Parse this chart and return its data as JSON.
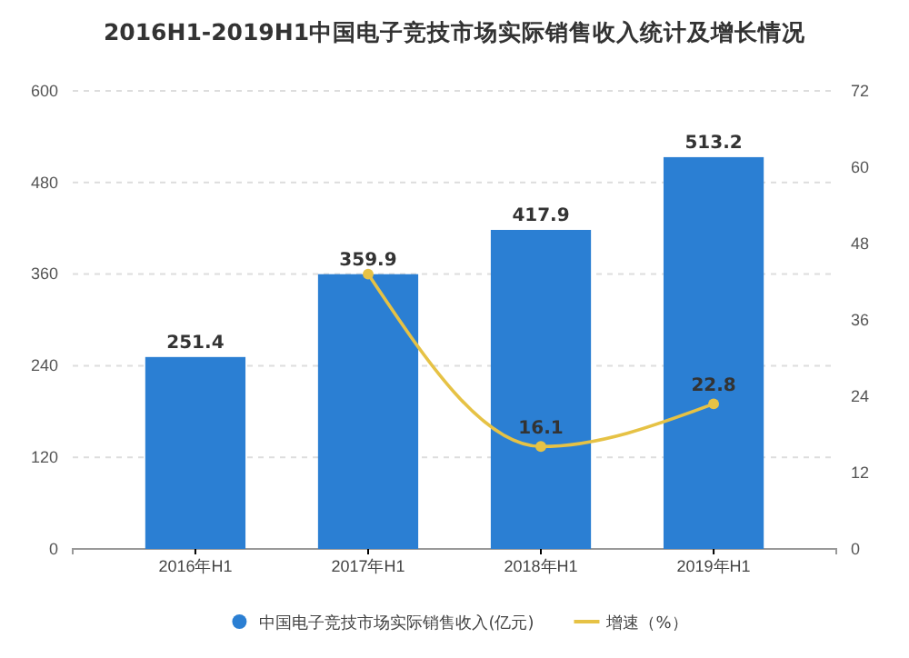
{
  "chart_data": {
    "type": "bar",
    "title": "2016H1-2019H1中国电子竞技市场实际销售收入统计及增长情况",
    "categories": [
      "2016年H1",
      "2017年H1",
      "2018年H1",
      "2019年H1"
    ],
    "series": [
      {
        "name": "中国电子竞技市场实际销售收入(亿元)",
        "color": "#2b7fd3",
        "values": [
          251.4,
          359.9,
          417.9,
          513.2
        ],
        "value_labels": [
          "251.4",
          "359.9",
          "417.9",
          "513.2"
        ]
      },
      {
        "name": "增速（%）",
        "type": "line",
        "axis": "y2",
        "color": "#e6c245",
        "values": [
          null,
          43.2,
          16.1,
          22.8
        ],
        "value_labels": [
          null,
          null,
          "16.1",
          "22.8"
        ]
      }
    ],
    "ylim": [
      0,
      600
    ],
    "yticks": [
      0,
      120,
      240,
      360,
      480,
      600
    ],
    "y2lim": [
      0,
      72
    ],
    "y2ticks": [
      0,
      12,
      24,
      36,
      48,
      60,
      72
    ],
    "grid": "y",
    "legend": "bottom",
    "marker": "circle"
  }
}
